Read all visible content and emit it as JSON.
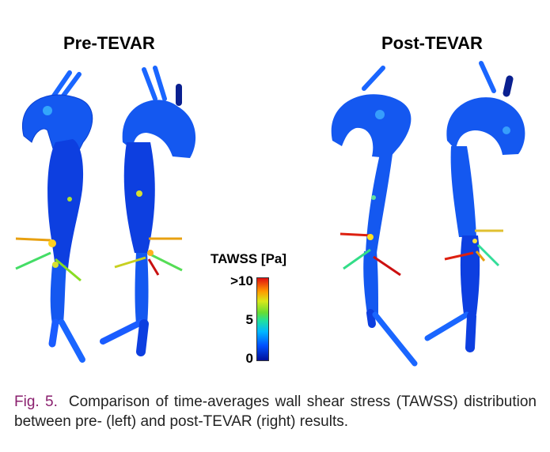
{
  "panels": {
    "pre_title": "Pre-TEVAR",
    "post_title": "Post-TEVAR"
  },
  "colorbar": {
    "title": "TAWSS [Pa]",
    "tick_max": ">10",
    "tick_mid": "5",
    "tick_min": "0",
    "colors": [
      "#00109a",
      "#0050ff",
      "#00b8ff",
      "#1fe0a0",
      "#66dd33",
      "#d9e81a",
      "#ff9a00",
      "#e01010"
    ]
  },
  "caption": {
    "label": "Fig. 5.",
    "text": "Comparison of time-averages wall shear stress (TAWSS) distribution between pre- (left) and post-TEVAR (right) results."
  }
}
